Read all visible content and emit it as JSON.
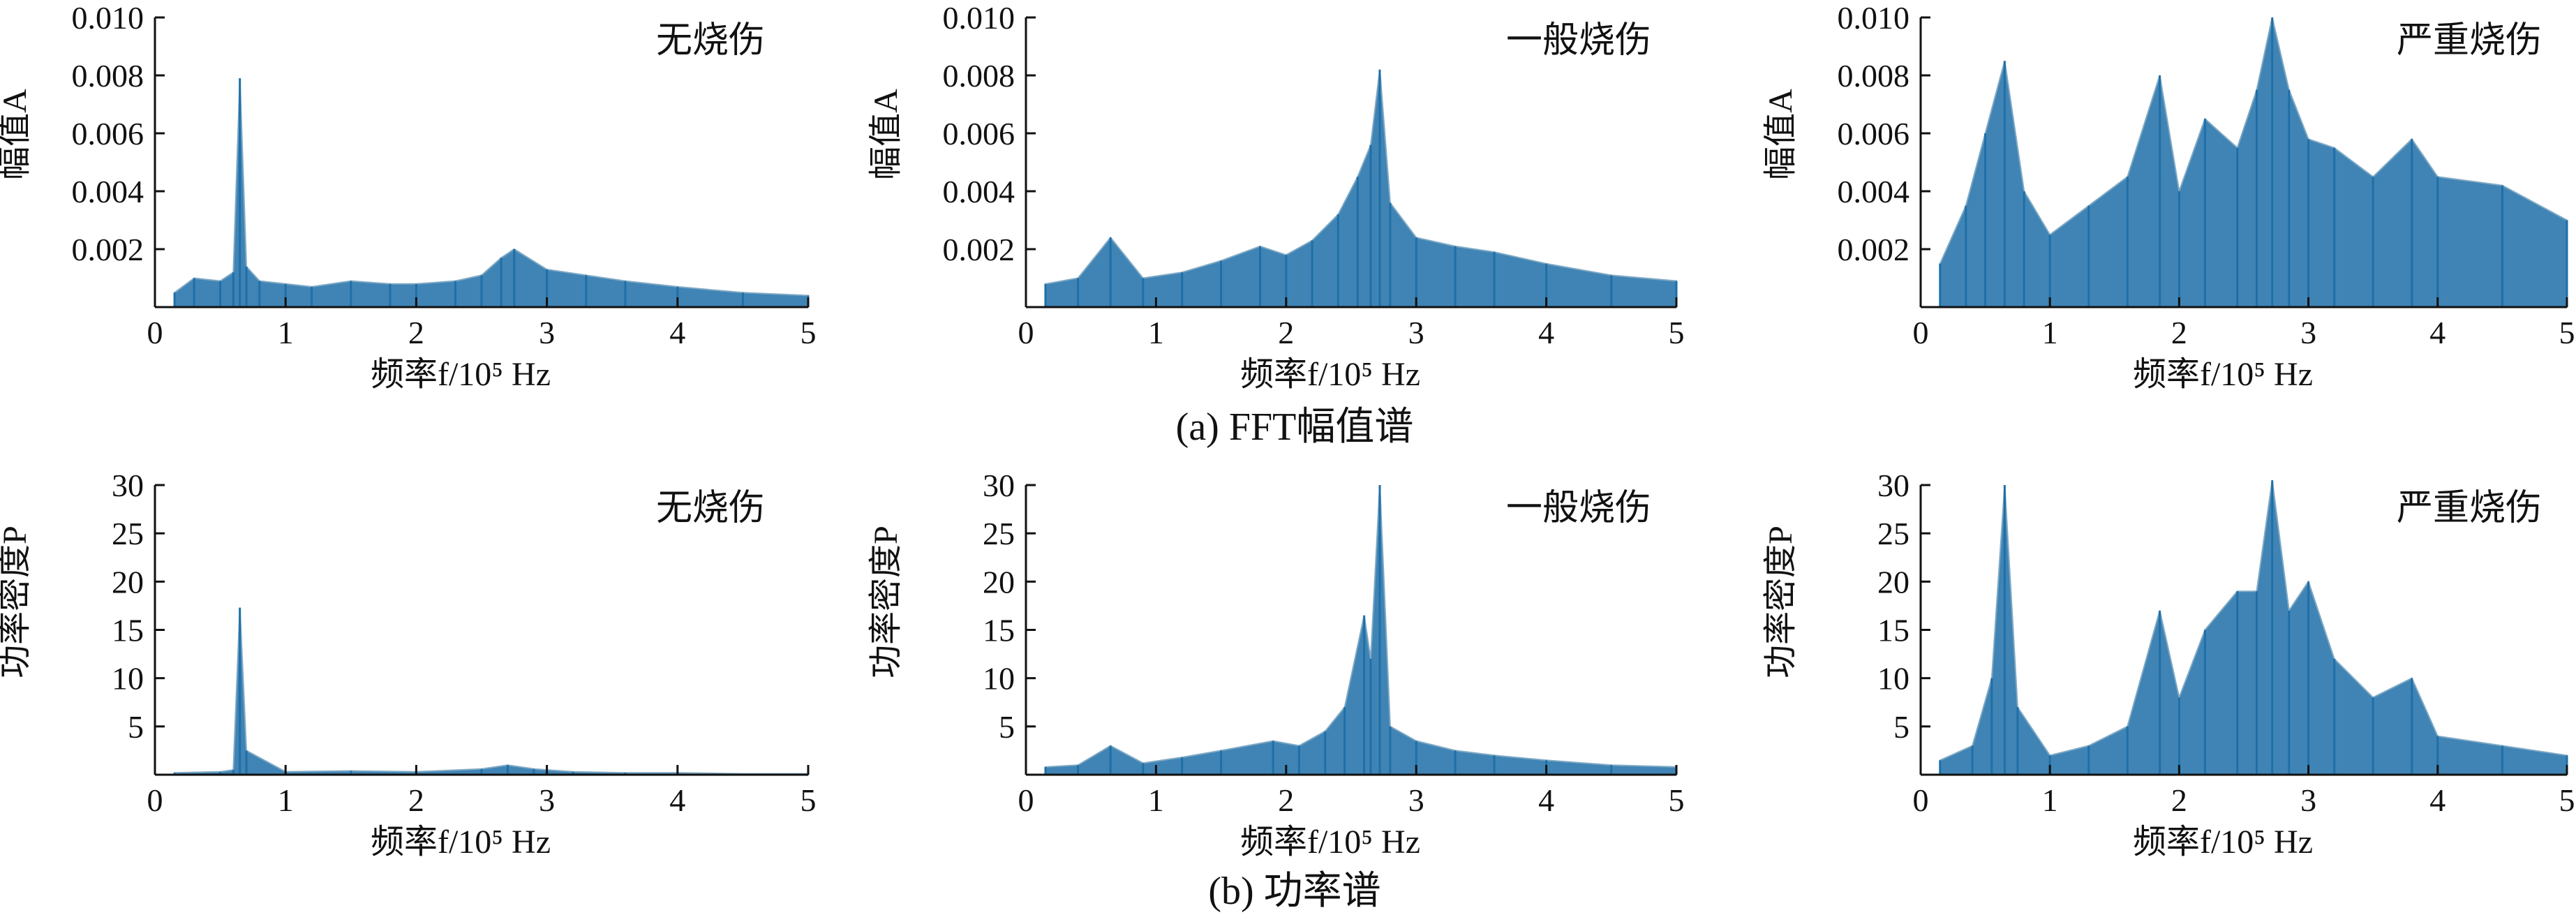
{
  "figure": {
    "caption_a": "(a) FFT幅值谱",
    "caption_b": "(b) 功率谱"
  },
  "colors": {
    "series": "#1f6fa8",
    "series_light": "#7fa9c4",
    "axis": "#111111"
  },
  "chart_data": [
    {
      "type": "area",
      "panel": "a-1",
      "title": "无烧伤",
      "xlabel": "频率f/10⁵ Hz",
      "ylabel": "幅值A",
      "xlim": [
        0,
        5
      ],
      "ylim": [
        0,
        0.01
      ],
      "x_ticks": [
        0,
        1,
        2,
        3,
        4,
        5
      ],
      "x_tick_labels": [
        "0",
        "1",
        "2",
        "3",
        "4",
        "5"
      ],
      "y_ticks": [
        0.002,
        0.004,
        0.006,
        0.008,
        0.01
      ],
      "y_tick_labels": [
        "0.002",
        "0.004",
        "0.006",
        "0.008",
        "0.010"
      ],
      "x": [
        0.15,
        0.3,
        0.5,
        0.6,
        0.65,
        0.7,
        0.8,
        1.0,
        1.2,
        1.5,
        1.8,
        2.0,
        2.3,
        2.5,
        2.65,
        2.75,
        3.0,
        3.3,
        3.6,
        4.0,
        4.5,
        5.0
      ],
      "y": [
        0.0005,
        0.001,
        0.0009,
        0.0012,
        0.0079,
        0.0014,
        0.0009,
        0.0008,
        0.0007,
        0.0009,
        0.0008,
        0.0008,
        0.0009,
        0.0011,
        0.0017,
        0.002,
        0.0013,
        0.0011,
        0.0009,
        0.0007,
        0.0005,
        0.0004
      ]
    },
    {
      "type": "area",
      "panel": "a-2",
      "title": "一般烧伤",
      "xlabel": "频率f/10⁵ Hz",
      "ylabel": "幅值A",
      "xlim": [
        0,
        5
      ],
      "ylim": [
        0,
        0.01
      ],
      "x_ticks": [
        0,
        1,
        2,
        3,
        4,
        5
      ],
      "x_tick_labels": [
        "0",
        "1",
        "2",
        "3",
        "4",
        "5"
      ],
      "y_ticks": [
        0.002,
        0.004,
        0.006,
        0.008,
        0.01
      ],
      "y_tick_labels": [
        "0.002",
        "0.004",
        "0.006",
        "0.008",
        "0.010"
      ],
      "x": [
        0.15,
        0.4,
        0.65,
        0.9,
        1.2,
        1.5,
        1.8,
        2.0,
        2.2,
        2.4,
        2.55,
        2.65,
        2.72,
        2.8,
        3.0,
        3.3,
        3.6,
        4.0,
        4.5,
        5.0
      ],
      "y": [
        0.0008,
        0.001,
        0.0024,
        0.001,
        0.0012,
        0.0016,
        0.0021,
        0.0018,
        0.0023,
        0.0032,
        0.0045,
        0.0056,
        0.0082,
        0.0036,
        0.0024,
        0.0021,
        0.0019,
        0.0015,
        0.0011,
        0.0009
      ]
    },
    {
      "type": "area",
      "panel": "a-3",
      "title": "严重烧伤",
      "xlabel": "频率f/10⁵ Hz",
      "ylabel": "幅值A",
      "xlim": [
        0,
        5
      ],
      "ylim": [
        0,
        0.01
      ],
      "x_ticks": [
        0,
        1,
        2,
        3,
        4,
        5
      ],
      "x_tick_labels": [
        "0",
        "1",
        "2",
        "3",
        "4",
        "5"
      ],
      "y_ticks": [
        0.002,
        0.004,
        0.006,
        0.008,
        0.01
      ],
      "y_tick_labels": [
        "0.002",
        "0.004",
        "0.006",
        "0.008",
        "0.010"
      ],
      "x": [
        0.15,
        0.35,
        0.5,
        0.65,
        0.8,
        1.0,
        1.3,
        1.6,
        1.85,
        2.0,
        2.2,
        2.45,
        2.6,
        2.72,
        2.85,
        3.0,
        3.2,
        3.5,
        3.8,
        4.0,
        4.5,
        5.0
      ],
      "y": [
        0.0015,
        0.0035,
        0.006,
        0.0085,
        0.004,
        0.0025,
        0.0035,
        0.0045,
        0.008,
        0.004,
        0.0065,
        0.0055,
        0.0075,
        0.01,
        0.0075,
        0.0058,
        0.0055,
        0.0045,
        0.0058,
        0.0045,
        0.0042,
        0.003
      ]
    },
    {
      "type": "area",
      "panel": "b-1",
      "title": "无烧伤",
      "xlabel": "频率f/10⁵ Hz",
      "ylabel": "功率密度P",
      "xlim": [
        0,
        5
      ],
      "ylim": [
        0,
        30
      ],
      "x_ticks": [
        0,
        1,
        2,
        3,
        4,
        5
      ],
      "x_tick_labels": [
        "0",
        "1",
        "2",
        "3",
        "4",
        "5"
      ],
      "y_ticks": [
        5,
        10,
        15,
        20,
        25,
        30
      ],
      "y_tick_labels": [
        "5",
        "10",
        "15",
        "20",
        "25",
        "30"
      ],
      "x": [
        0.15,
        0.5,
        0.6,
        0.65,
        0.7,
        1.0,
        1.5,
        2.0,
        2.5,
        2.7,
        2.9,
        3.2,
        3.6,
        4.0,
        4.5,
        5.0
      ],
      "y": [
        0.2,
        0.3,
        0.5,
        17.3,
        2.5,
        0.3,
        0.4,
        0.3,
        0.6,
        1.0,
        0.6,
        0.3,
        0.2,
        0.2,
        0.1,
        0.1
      ]
    },
    {
      "type": "area",
      "panel": "b-2",
      "title": "一般烧伤",
      "xlabel": "频率f/10⁵ Hz",
      "ylabel": "功率密度P",
      "xlim": [
        0,
        5
      ],
      "ylim": [
        0,
        30
      ],
      "x_ticks": [
        0,
        1,
        2,
        3,
        4,
        5
      ],
      "x_tick_labels": [
        "0",
        "1",
        "2",
        "3",
        "4",
        "5"
      ],
      "y_ticks": [
        5,
        10,
        15,
        20,
        25,
        30
      ],
      "y_tick_labels": [
        "5",
        "10",
        "15",
        "20",
        "25",
        "30"
      ],
      "x": [
        0.15,
        0.4,
        0.65,
        0.9,
        1.2,
        1.5,
        1.9,
        2.1,
        2.3,
        2.45,
        2.6,
        2.65,
        2.72,
        2.8,
        3.0,
        3.3,
        3.6,
        4.0,
        4.5,
        5.0
      ],
      "y": [
        0.8,
        1.0,
        3.0,
        1.2,
        1.8,
        2.5,
        3.5,
        3.0,
        4.5,
        7.0,
        16.5,
        12.0,
        30.0,
        5.0,
        3.5,
        2.5,
        2.0,
        1.5,
        1.0,
        0.8
      ]
    },
    {
      "type": "area",
      "panel": "b-3",
      "title": "严重烧伤",
      "xlabel": "频率f/10⁵ Hz",
      "ylabel": "功率密度P",
      "xlim": [
        0,
        5
      ],
      "ylim": [
        0,
        30
      ],
      "x_ticks": [
        0,
        1,
        2,
        3,
        4,
        5
      ],
      "x_tick_labels": [
        "0",
        "1",
        "2",
        "3",
        "4",
        "5"
      ],
      "y_ticks": [
        5,
        10,
        15,
        20,
        25,
        30
      ],
      "y_tick_labels": [
        "5",
        "10",
        "15",
        "20",
        "25",
        "30"
      ],
      "x": [
        0.15,
        0.4,
        0.55,
        0.65,
        0.75,
        1.0,
        1.3,
        1.6,
        1.85,
        2.0,
        2.2,
        2.45,
        2.6,
        2.72,
        2.85,
        3.0,
        3.2,
        3.5,
        3.8,
        4.0,
        4.5,
        5.0
      ],
      "y": [
        1.5,
        3.0,
        10.0,
        30.0,
        7.0,
        2.0,
        3.0,
        5.0,
        17.0,
        8.0,
        15.0,
        19.0,
        19.0,
        30.5,
        17.0,
        20.0,
        12.0,
        8.0,
        10.0,
        4.0,
        3.0,
        2.0
      ]
    }
  ]
}
